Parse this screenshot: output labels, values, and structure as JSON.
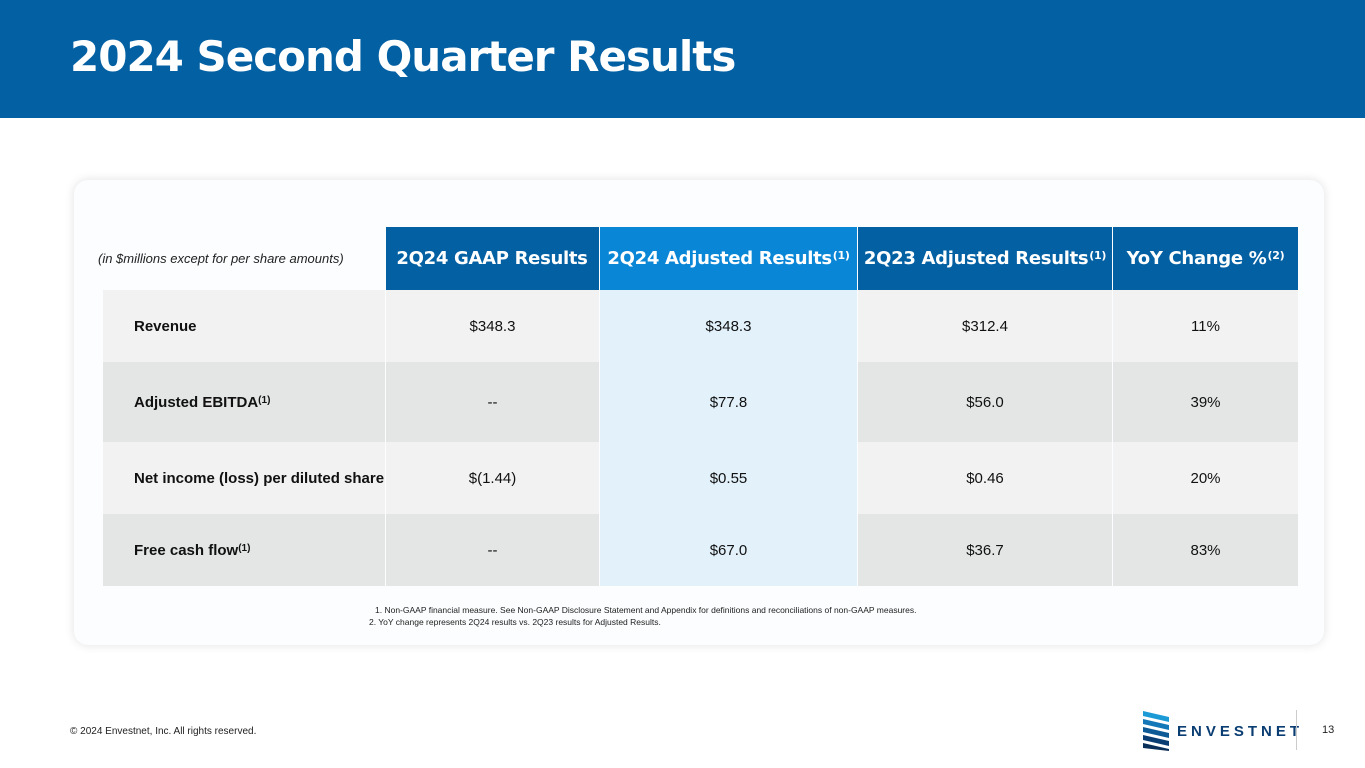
{
  "title": "2024 Second Quarter Results",
  "table": {
    "units_note": "(in $millions except for per share amounts)",
    "columns": [
      {
        "label": "2Q24 GAAP Results",
        "sup": "",
        "color": "#0360a3"
      },
      {
        "label": "2Q24 Adjusted Results",
        "sup": "(1)",
        "color": "#0a86d6"
      },
      {
        "label": "2Q23 Adjusted Results",
        "sup": "(1)",
        "color": "#0360a3"
      },
      {
        "label": "YoY Change %",
        "sup": "(2)",
        "color": "#0360a3"
      }
    ],
    "rows": [
      {
        "label": "Revenue",
        "sup": "",
        "values": [
          "$348.3",
          "$348.3",
          "$312.4",
          "11%"
        ]
      },
      {
        "label": "Adjusted EBITDA",
        "sup": "(1)",
        "values": [
          "--",
          "$77.8",
          "$56.0",
          "39%"
        ]
      },
      {
        "label": "Net income (loss) per diluted share",
        "sup": "",
        "values": [
          "$(1.44)",
          "$0.55",
          "$0.46",
          "20%"
        ]
      },
      {
        "label": "Free cash flow",
        "sup": "(1)",
        "values": [
          "--",
          "$67.0",
          "$36.7",
          "83%"
        ]
      }
    ]
  },
  "footnotes": [
    "1. Non-GAAP financial measure. See Non-GAAP Disclosure Statement and Appendix for definitions and reconciliations of non-GAAP measures.",
    "2. YoY change represents 2Q24 results vs. 2Q23 results for Adjusted Results."
  ],
  "footer": {
    "copyright": "© 2024 Envestnet, Inc. All rights reserved.",
    "logo_text": "ENVESTNET",
    "page_number": "13"
  }
}
